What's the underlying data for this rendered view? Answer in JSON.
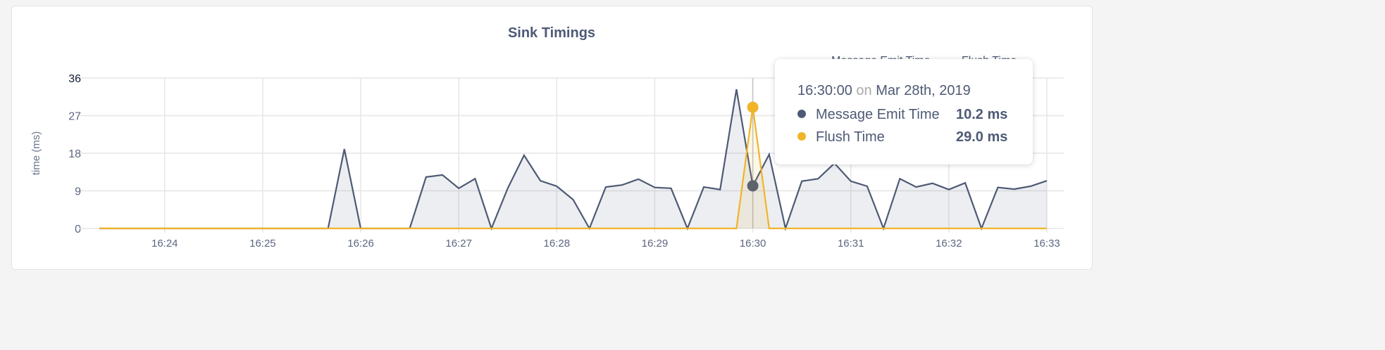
{
  "chart_data": {
    "type": "area",
    "title": "Sink Timings",
    "ylabel": "time (ms)",
    "xlabel": "",
    "ylim": [
      0,
      36
    ],
    "yticks": [
      0,
      9,
      18,
      27,
      36
    ],
    "xticks": [
      "16:24",
      "16:25",
      "16:26",
      "16:27",
      "16:28",
      "16:29",
      "16:30",
      "16:31",
      "16:32",
      "16:33"
    ],
    "xlim": [
      "16:23:20",
      "16:33:00"
    ],
    "grid": true,
    "legend_position": "top-right",
    "x": [
      "16:23:20",
      "16:23:30",
      "16:23:40",
      "16:23:50",
      "16:24:00",
      "16:24:10",
      "16:24:20",
      "16:24:30",
      "16:24:40",
      "16:24:50",
      "16:25:00",
      "16:25:10",
      "16:25:20",
      "16:25:30",
      "16:25:40",
      "16:25:50",
      "16:26:00",
      "16:26:10",
      "16:26:20",
      "16:26:30",
      "16:26:40",
      "16:26:50",
      "16:27:00",
      "16:27:10",
      "16:27:20",
      "16:27:30",
      "16:27:40",
      "16:27:50",
      "16:28:00",
      "16:28:10",
      "16:28:20",
      "16:28:30",
      "16:28:40",
      "16:28:50",
      "16:29:00",
      "16:29:10",
      "16:29:20",
      "16:29:30",
      "16:29:40",
      "16:29:50",
      "16:30:00",
      "16:30:10",
      "16:30:20",
      "16:30:30",
      "16:30:40",
      "16:30:50",
      "16:31:00",
      "16:31:10",
      "16:31:20",
      "16:31:30",
      "16:31:40",
      "16:31:50",
      "16:32:00",
      "16:32:10",
      "16:32:20",
      "16:32:30",
      "16:32:40",
      "16:32:50",
      "16:33:00"
    ],
    "series": [
      {
        "name": "Message Emit Time",
        "color": "#4e5a75",
        "values": [
          0,
          0,
          0,
          0,
          0,
          0,
          0,
          0,
          0,
          0,
          0,
          0,
          0,
          0,
          0,
          19.0,
          0,
          0,
          0,
          0,
          12.3,
          12.8,
          9.6,
          11.9,
          0,
          9.6,
          17.5,
          11.4,
          10.1,
          6.9,
          0,
          9.9,
          10.4,
          11.8,
          9.8,
          9.6,
          0,
          9.9,
          9.3,
          33.3,
          10.2,
          17.7,
          0,
          11.3,
          11.9,
          15.6,
          11.3,
          10.1,
          0,
          11.9,
          9.9,
          10.8,
          9.3,
          10.9,
          0,
          9.8,
          9.4,
          10.1,
          11.4
        ]
      },
      {
        "name": "Flush Time",
        "color": "#f0b429",
        "values": [
          0,
          0,
          0,
          0,
          0,
          0,
          0,
          0,
          0,
          0,
          0,
          0,
          0,
          0,
          0,
          0,
          0,
          0,
          0,
          0,
          0,
          0,
          0,
          0,
          0,
          0,
          0,
          0,
          0,
          0,
          0,
          0,
          0,
          0,
          0,
          0,
          0,
          0,
          0,
          0,
          29.0,
          0,
          0,
          0,
          0,
          0,
          0,
          0,
          0,
          0,
          0,
          0,
          0,
          0,
          0,
          0,
          0,
          0,
          0
        ]
      }
    ]
  },
  "tooltip": {
    "time": "16:30:00",
    "on": "on",
    "date": "Mar 28th, 2019",
    "rows": [
      {
        "label": "Message Emit Time",
        "value": "10.2 ms",
        "color": "#4e5a75"
      },
      {
        "label": "Flush Time",
        "value": "29.0 ms",
        "color": "#f0b429"
      }
    ]
  }
}
